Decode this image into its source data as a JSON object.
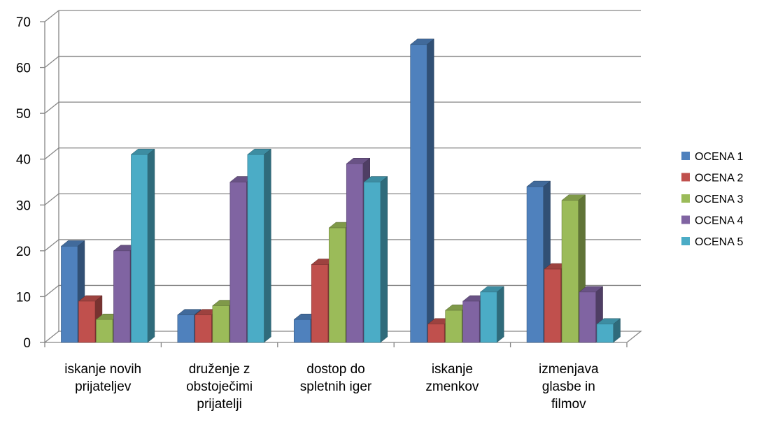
{
  "chart_data": {
    "type": "bar",
    "title": "",
    "xlabel": "",
    "ylabel": "",
    "ylim": [
      0,
      70
    ],
    "yticks": [
      0,
      10,
      20,
      30,
      40,
      50,
      60,
      70
    ],
    "grid": true,
    "three_d": true,
    "legend_position": "right",
    "categories": [
      [
        "iskanje novih",
        "prijateljev"
      ],
      [
        "druženje z",
        "obstoječimi",
        "prijatelji"
      ],
      [
        "dostop do",
        "spletnih iger"
      ],
      [
        "iskanje",
        "zmenkov"
      ],
      [
        "izmenjava",
        "glasbe in",
        "filmov"
      ]
    ],
    "series": [
      {
        "name": "OCENA 1",
        "color": "#4F81BD",
        "values": [
          21,
          6,
          5,
          65,
          34
        ]
      },
      {
        "name": "OCENA 2",
        "color": "#C0504D",
        "values": [
          9,
          6,
          17,
          4,
          16
        ]
      },
      {
        "name": "OCENA 3",
        "color": "#9BBB59",
        "values": [
          5,
          8,
          25,
          7,
          31
        ]
      },
      {
        "name": "OCENA 4",
        "color": "#8064A2",
        "values": [
          20,
          35,
          39,
          9,
          11
        ]
      },
      {
        "name": "OCENA 5",
        "color": "#4BACC6",
        "values": [
          41,
          41,
          35,
          11,
          4
        ]
      }
    ]
  }
}
